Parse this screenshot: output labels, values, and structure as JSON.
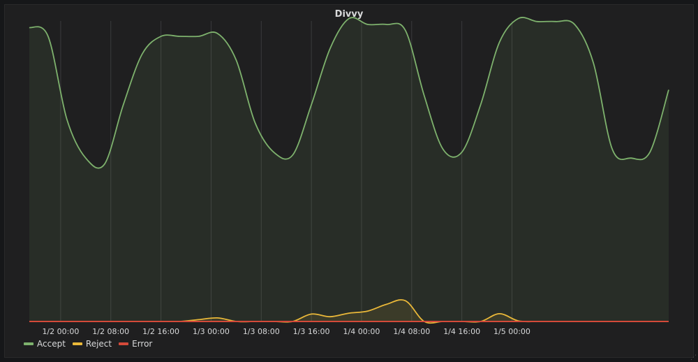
{
  "panel": {
    "title": "Divvy"
  },
  "colors": {
    "accept": "#7eb26d",
    "reject": "#eab839",
    "error": "#d44a3a",
    "grid": "#3a3b3d"
  },
  "chart_data": {
    "type": "area",
    "title": "Divvy",
    "xlabel": "",
    "ylabel": "",
    "x_start": "1/1 19:00",
    "x_end": "1/5 09:00",
    "hours_per_point": 3,
    "x_ticks": [
      "1/2 00:00",
      "1/2 08:00",
      "1/2 16:00",
      "1/3 00:00",
      "1/3 08:00",
      "1/3 16:00",
      "1/4 00:00",
      "1/4 08:00",
      "1/4 16:00",
      "1/5 00:00"
    ],
    "ylim": [
      0,
      100
    ],
    "grid": true,
    "legend_position": "bottom-left",
    "series": [
      {
        "name": "Accept",
        "color": "#7eb26d",
        "fill": true,
        "values": [
          99,
          96,
          68,
          55,
          53,
          73,
          90,
          96,
          96,
          96,
          97,
          88,
          67,
          57,
          56,
          73,
          92,
          102,
          100,
          100,
          98,
          76,
          58,
          57,
          73,
          94,
          102,
          101,
          101,
          100,
          87,
          58,
          55,
          57,
          78
        ]
      },
      {
        "name": "Reject",
        "color": "#eab839",
        "fill": true,
        "values": [
          0,
          0,
          0,
          0,
          0,
          0,
          0,
          0,
          0,
          0.6,
          1.2,
          0,
          0,
          0,
          0,
          2.5,
          1.6,
          2.8,
          3.5,
          5.8,
          7.0,
          0,
          0,
          0,
          0,
          2.6,
          0.2,
          0,
          0,
          0,
          0,
          0,
          0,
          0,
          0
        ]
      },
      {
        "name": "Error",
        "color": "#d44a3a",
        "fill": false,
        "values": [
          0,
          0,
          0,
          0,
          0,
          0,
          0,
          0,
          0,
          0,
          0,
          0,
          0,
          0,
          0,
          0,
          0,
          0,
          0,
          0,
          0,
          0,
          0,
          0,
          0,
          0,
          0,
          0,
          0,
          0,
          0,
          0,
          0,
          0,
          0
        ]
      }
    ]
  }
}
